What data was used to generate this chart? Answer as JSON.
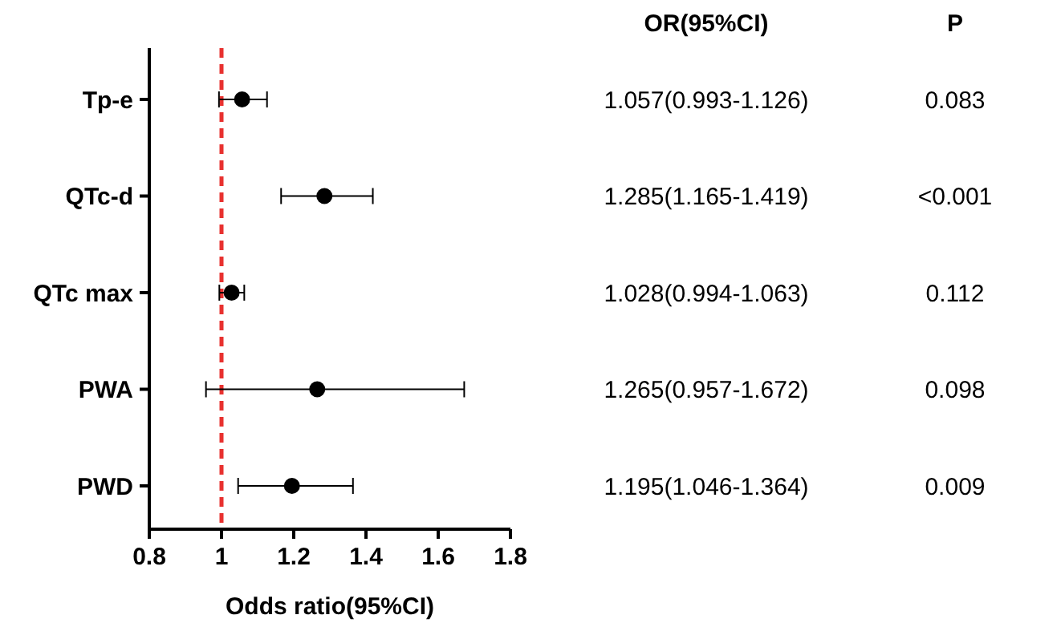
{
  "chart_data": {
    "type": "scatter",
    "orientation": "horizontal",
    "categories": [
      "Tp-e",
      "QTc-d",
      "QTc max",
      "PWA",
      "PWD"
    ],
    "values": [
      1.057,
      1.285,
      1.028,
      1.265,
      1.195
    ],
    "errors": [
      [
        0.993,
        1.126
      ],
      [
        1.165,
        1.419
      ],
      [
        0.994,
        1.063
      ],
      [
        0.957,
        1.672
      ],
      [
        1.046,
        1.364
      ]
    ],
    "value_labels": [
      "1.057(0.993-1.126)",
      "1.285(1.165-1.419)",
      "1.028(0.994-1.063)",
      "1.265(0.957-1.672)",
      "1.195(1.046-1.364)"
    ],
    "color": "#000000",
    "marker": "circle",
    "xlim": [
      0.8,
      1.8
    ],
    "xticks": [
      0.8,
      1,
      1.2,
      1.4,
      1.6,
      1.8
    ],
    "xlabel": "Odds ratio(95%CI)",
    "ref_lines": [
      {
        "axis": "x",
        "value": 1,
        "color": "#e8312f",
        "line_style": "dashed"
      }
    ],
    "annotations": [
      "OR(95%CI)",
      "P",
      "0.083",
      "<0.001",
      "0.112",
      "0.098",
      "0.009"
    ],
    "grid": false
  }
}
